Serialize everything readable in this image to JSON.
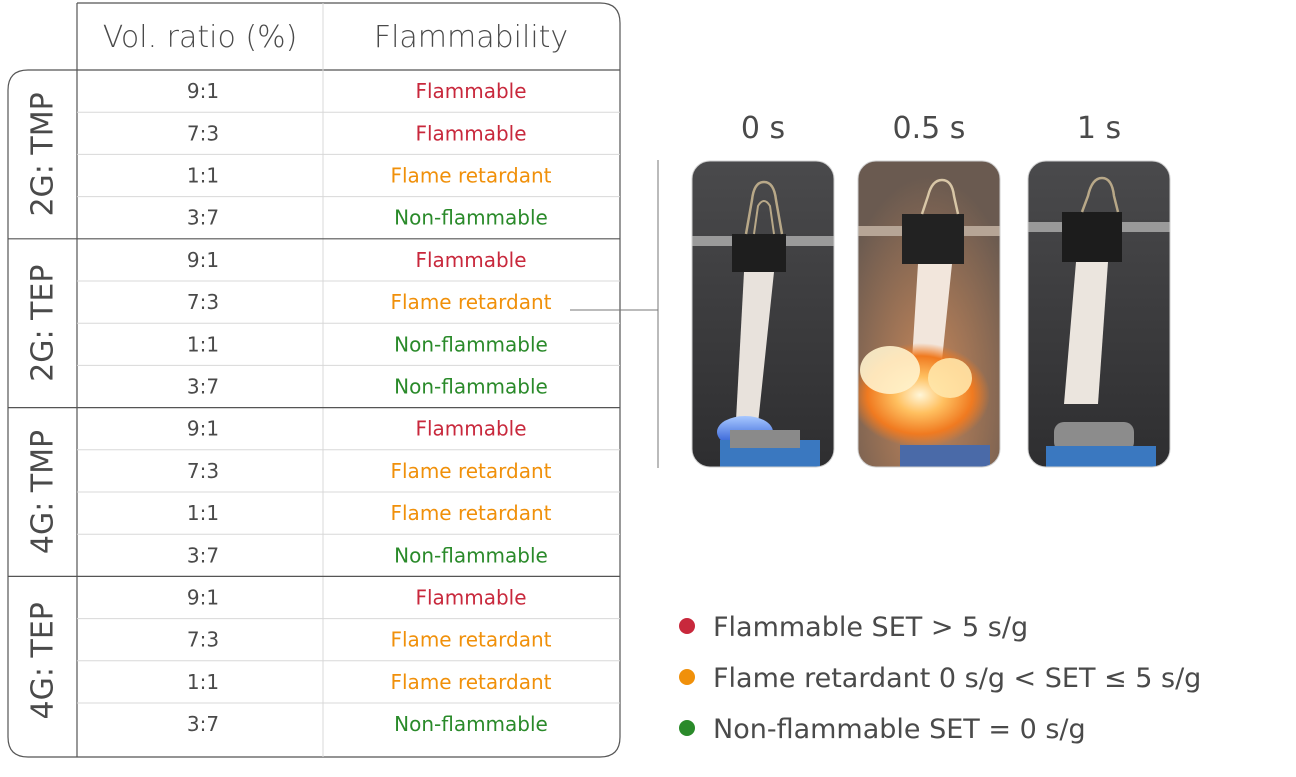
{
  "colors": {
    "flammable": "#c8283c",
    "flame_retardant": "#f0900a",
    "non_flammable": "#2a8a2a",
    "border": "#555555",
    "inner_line": "#d8d8d8"
  },
  "table": {
    "header": {
      "ratio": "Vol. ratio (%)",
      "flammability": "Flammability"
    },
    "groups": [
      {
        "label": "2G: TMP",
        "rows": [
          {
            "ratio": "9:1",
            "flammability": "Flammable",
            "class": "flammable"
          },
          {
            "ratio": "7:3",
            "flammability": "Flammable",
            "class": "flammable"
          },
          {
            "ratio": "1:1",
            "flammability": "Flame retardant",
            "class": "flame_retardant"
          },
          {
            "ratio": "3:7",
            "flammability": "Non-flammable",
            "class": "non_flammable"
          }
        ]
      },
      {
        "label": "2G: TEP",
        "rows": [
          {
            "ratio": "9:1",
            "flammability": "Flammable",
            "class": "flammable"
          },
          {
            "ratio": "7:3",
            "flammability": "Flame retardant",
            "class": "flame_retardant"
          },
          {
            "ratio": "1:1",
            "flammability": "Non-flammable",
            "class": "non_flammable"
          },
          {
            "ratio": "3:7",
            "flammability": "Non-flammable",
            "class": "non_flammable"
          }
        ]
      },
      {
        "label": "4G: TMP",
        "rows": [
          {
            "ratio": "9:1",
            "flammability": "Flammable",
            "class": "flammable"
          },
          {
            "ratio": "7:3",
            "flammability": "Flame retardant",
            "class": "flame_retardant"
          },
          {
            "ratio": "1:1",
            "flammability": "Flame retardant",
            "class": "flame_retardant"
          },
          {
            "ratio": "3:7",
            "flammability": "Non-flammable",
            "class": "non_flammable"
          }
        ]
      },
      {
        "label": "4G: TEP",
        "rows": [
          {
            "ratio": "9:1",
            "flammability": "Flammable",
            "class": "flammable"
          },
          {
            "ratio": "7:3",
            "flammability": "Flame retardant",
            "class": "flame_retardant"
          },
          {
            "ratio": "1:1",
            "flammability": "Flame retardant",
            "class": "flame_retardant"
          },
          {
            "ratio": "3:7",
            "flammability": "Non-flammable",
            "class": "non_flammable"
          }
        ]
      }
    ]
  },
  "photos": {
    "times": [
      "0 s",
      "0.5 s",
      "1 s"
    ]
  },
  "legend": [
    {
      "text": "Flammable SET > 5 s/g",
      "class": "flammable"
    },
    {
      "text": "Flame retardant 0 s/g < SET ≤ 5 s/g",
      "class": "flame_retardant"
    },
    {
      "text": "Non-flammable SET = 0 s/g",
      "class": "non_flammable"
    }
  ]
}
